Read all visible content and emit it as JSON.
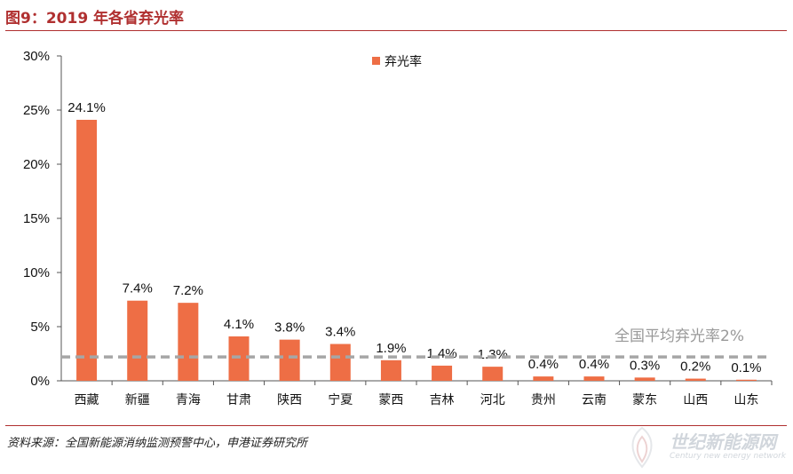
{
  "header": {
    "title": "图9：2019 年各省弃光率"
  },
  "source": {
    "text": "资料来源：全国新能源消纳监测预警中心，申港证券研究所"
  },
  "watermark": {
    "name": "世纪新能源网",
    "sub": "Century new energy network"
  },
  "colors": {
    "bar": "#ee6e45",
    "accent": "#b03030",
    "avg_line": "#a6a6a6"
  },
  "chart_data": {
    "type": "bar",
    "categories": [
      "西藏",
      "新疆",
      "青海",
      "甘肃",
      "陕西",
      "宁夏",
      "蒙西",
      "吉林",
      "河北",
      "贵州",
      "云南",
      "蒙东",
      "山西",
      "山东"
    ],
    "series": [
      {
        "name": "弃光率",
        "values": [
          24.1,
          7.4,
          7.2,
          4.1,
          3.8,
          3.4,
          1.9,
          1.4,
          1.3,
          0.4,
          0.4,
          0.3,
          0.2,
          0.1
        ]
      }
    ],
    "data_labels": [
      "24.1%",
      "7.4%",
      "7.2%",
      "4.1%",
      "3.8%",
      "3.4%",
      "1.9%",
      "1.4%",
      "1.3%",
      "0.4%",
      "0.4%",
      "0.3%",
      "0.2%",
      "0.1%"
    ],
    "yticks": [
      "0%",
      "5%",
      "10%",
      "15%",
      "20%",
      "25%",
      "30%"
    ],
    "ylim": [
      0,
      30
    ],
    "reference_line": {
      "value": 2.2,
      "label": "全国平均弃光率2%"
    },
    "legend_position": "top-center",
    "grid": false
  }
}
